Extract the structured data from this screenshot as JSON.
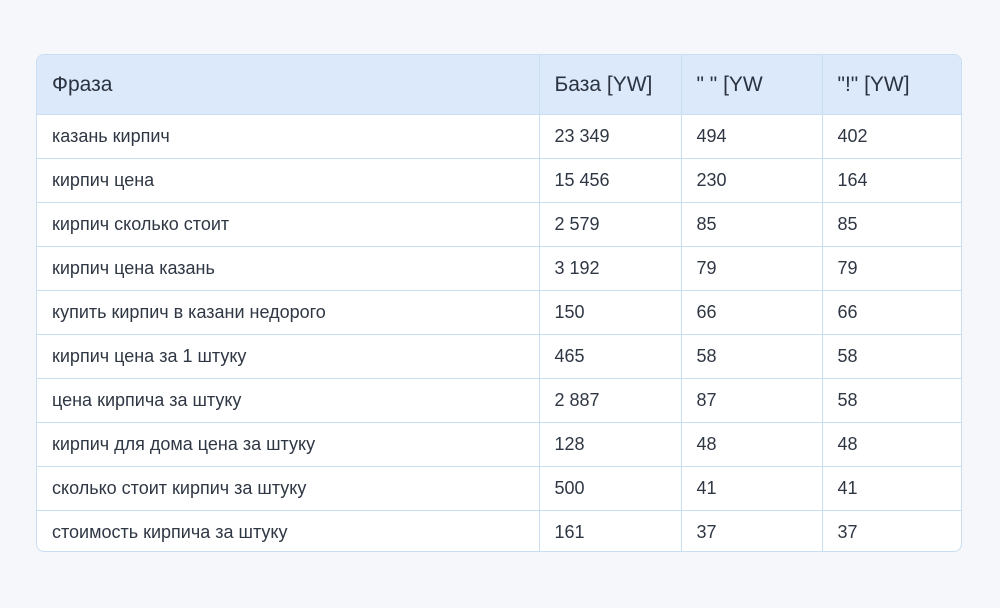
{
  "table": {
    "columns": [
      "Фраза",
      "База [YW]",
      "\" \" [YW",
      "\"!\" [YW]"
    ],
    "rows": [
      [
        "казань кирпич",
        "23 349",
        "494",
        "402"
      ],
      [
        "кирпич цена",
        "15 456",
        "230",
        "164"
      ],
      [
        "кирпич сколько стоит",
        "2 579",
        "85",
        "85"
      ],
      [
        "кирпич цена казань",
        "3 192",
        "79",
        "79"
      ],
      [
        "купить кирпич в казани недорого",
        "150",
        "66",
        "66"
      ],
      [
        "кирпич цена за 1 штуку",
        "465",
        "58",
        "58"
      ],
      [
        "цена кирпича за штуку",
        "2 887",
        "87",
        "58"
      ],
      [
        "кирпич для дома цена за штуку",
        "128",
        "48",
        "48"
      ],
      [
        "сколько стоит кирпич за штуку",
        "500",
        "41",
        "41"
      ],
      [
        "стоимость кирпича за штуку",
        "161",
        "37",
        "37"
      ]
    ]
  },
  "colors": {
    "background": "#f5f7fa",
    "header_background": "#dbe9fb",
    "border": "#c9def2",
    "text": "#2b3340"
  }
}
